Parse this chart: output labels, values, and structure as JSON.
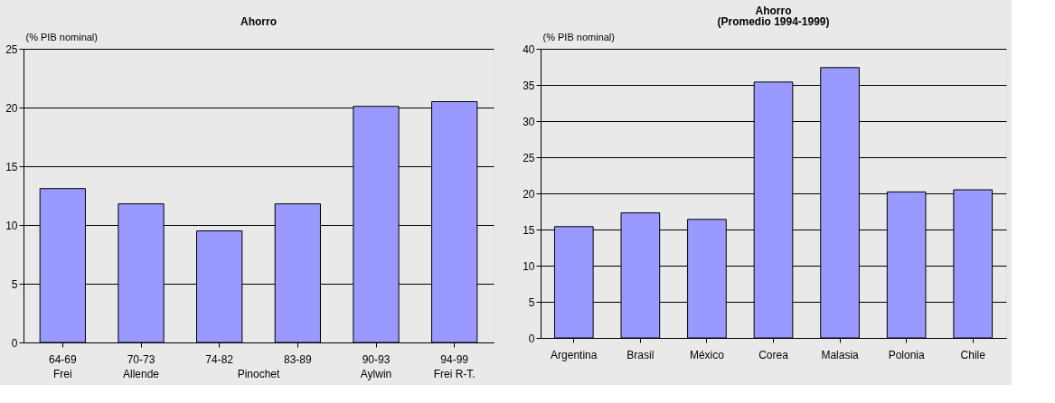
{
  "chart_data": [
    {
      "type": "bar",
      "title": "Ahorro",
      "ylabel": "(% PIB nominal)",
      "categories": [
        "64-69",
        "70-73",
        "74-82",
        "83-89",
        "90-93",
        "94-99"
      ],
      "values": [
        13.1,
        11.8,
        9.5,
        11.8,
        20.1,
        20.5
      ],
      "color": "#9999ff",
      "ylim": [
        0,
        25
      ],
      "yticks": [
        0,
        5,
        10,
        15,
        20,
        25
      ],
      "grid": "y",
      "annotations": [
        "Frei",
        "Allende",
        "Pinochet",
        "Aylwin",
        "Frei R-T."
      ]
    },
    {
      "type": "bar",
      "title": "Ahorro",
      "subtitle": "(Promedio 1994-1999)",
      "ylabel": "(% PIB nominal)",
      "categories": [
        "Argentina",
        "Brasil",
        "México",
        "Corea",
        "Malasia",
        "Polonia",
        "Chile"
      ],
      "values": [
        15.4,
        17.3,
        16.4,
        35.4,
        37.4,
        20.2,
        20.5
      ],
      "color": "#9999ff",
      "ylim": [
        0,
        40
      ],
      "yticks": [
        0,
        5,
        10,
        15,
        20,
        25,
        30,
        35,
        40
      ],
      "grid": "y"
    }
  ]
}
